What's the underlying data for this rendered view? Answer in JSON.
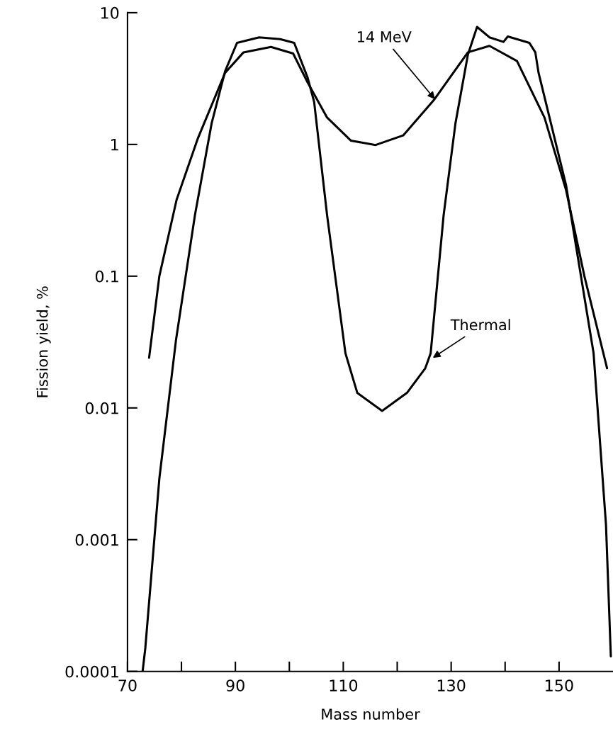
{
  "chart_data": {
    "type": "line",
    "xlabel": "Mass number",
    "ylabel": "Fission yield, %",
    "log": "y",
    "grid": false,
    "marker": "none",
    "line_style": "solid",
    "xlim": [
      70,
      160
    ],
    "ylim": [
      0.0001,
      10
    ],
    "xticks": [
      70,
      {
        "value": 80,
        "label": null
      },
      90,
      {
        "value": 100,
        "label": null
      },
      110,
      {
        "value": 120,
        "label": null
      },
      130,
      {
        "value": 140,
        "label": null
      },
      150
    ],
    "yticks": [
      0.0001,
      0.001,
      0.01,
      0.1,
      1,
      10
    ],
    "series": [
      {
        "color": "#000000",
        "x": [
          72.8,
          73.3,
          75.9,
          79.0,
          82.5,
          85.6,
          88.1,
          90.3,
          94.4,
          98.3,
          100.9,
          103.4,
          104.6,
          107.0,
          110.4,
          112.6,
          117.2,
          121.8,
          125.2,
          126.2,
          128.6,
          130.8,
          133.1,
          134.8,
          137.1,
          139.7,
          140.5,
          144.5,
          145.6,
          146.2,
          151.3,
          156.4,
          158.7,
          159.6
        ],
        "values": [
          0.0001,
          0.00015,
          0.0029,
          0.033,
          0.29,
          1.45,
          3.6,
          5.9,
          6.5,
          6.3,
          5.9,
          3.2,
          2.1,
          0.29,
          0.026,
          0.013,
          0.0095,
          0.013,
          0.02,
          0.026,
          0.29,
          1.45,
          4.8,
          7.8,
          6.5,
          6.0,
          6.6,
          5.9,
          5.0,
          3.5,
          0.49,
          0.026,
          0.0013,
          0.00013
        ]
      },
      {
        "color": "#000000",
        "x": [
          74.0,
          75.9,
          79.1,
          83.0,
          88.1,
          91.5,
          96.6,
          100.7,
          103.4,
          107.0,
          111.4,
          116.0,
          121.1,
          126.9,
          133.1,
          137.1,
          142.2,
          147.3,
          151.3,
          154.7,
          158.9
        ],
        "values": [
          0.024,
          0.1,
          0.38,
          1.1,
          3.5,
          5.0,
          5.5,
          4.9,
          2.95,
          1.6,
          1.07,
          0.99,
          1.17,
          2.2,
          5.0,
          5.6,
          4.3,
          1.6,
          0.45,
          0.1,
          0.02
        ]
      }
    ],
    "annotations": [
      {
        "text": "14 MeV",
        "x": 127,
        "y": 2.2
      },
      {
        "text": "Thermal",
        "x": 126.6,
        "y": 0.024
      }
    ]
  }
}
